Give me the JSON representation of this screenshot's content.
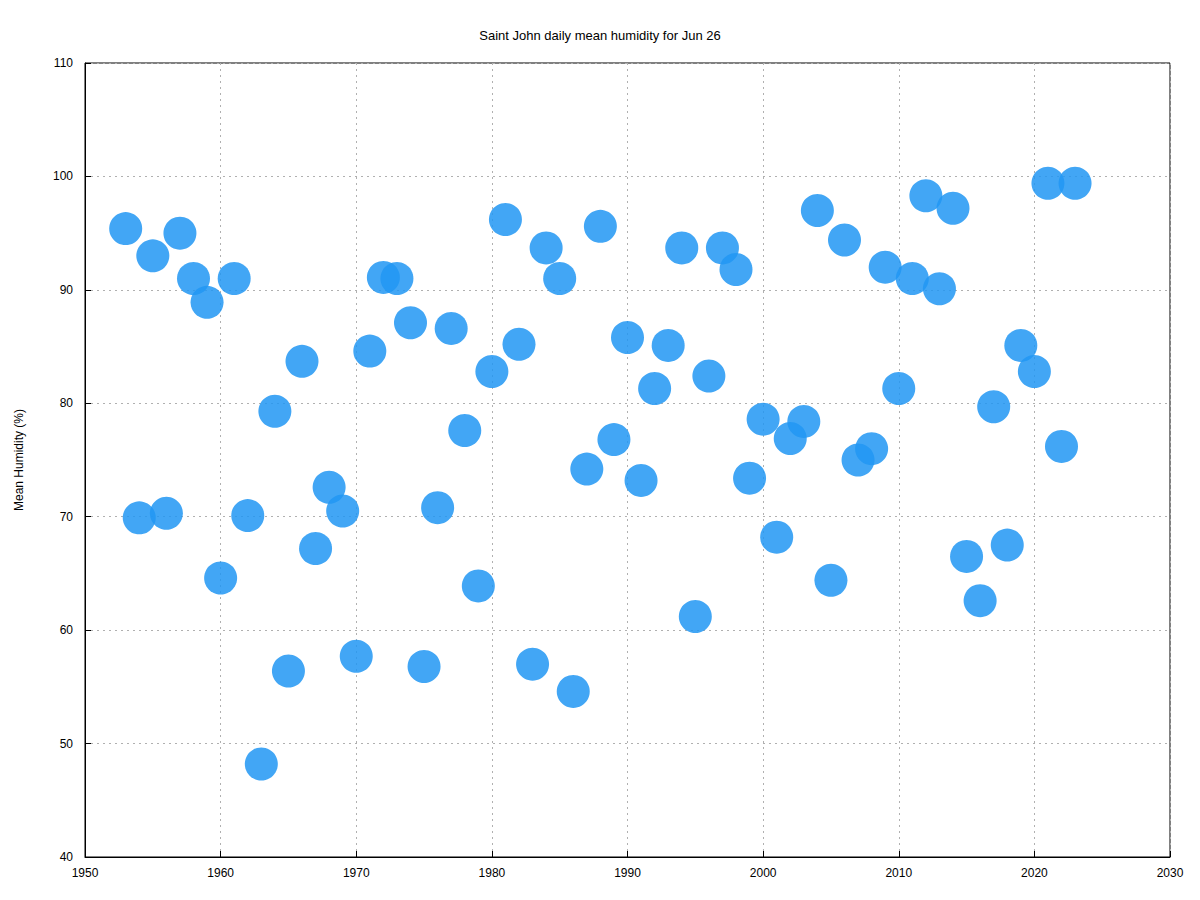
{
  "chart_data": {
    "type": "scatter",
    "title": "Saint John daily mean humidity for Jun 26",
    "y_label": "Mean Humidity (%)",
    "x": [
      1953,
      1954,
      1955,
      1956,
      1957,
      1958,
      1959,
      1960,
      1961,
      1962,
      1963,
      1964,
      1965,
      1966,
      1967,
      1968,
      1969,
      1970,
      1971,
      1972,
      1973,
      1974,
      1975,
      1976,
      1977,
      1978,
      1979,
      1980,
      1981,
      1982,
      1983,
      1984,
      1985,
      1986,
      1987,
      1988,
      1989,
      1990,
      1991,
      1992,
      1993,
      1994,
      1995,
      1996,
      1997,
      1998,
      1999,
      2000,
      2001,
      2002,
      2003,
      2004,
      2005,
      2006,
      2007,
      2008,
      2009,
      2010,
      2011,
      2012,
      2013,
      2014,
      2015,
      2016,
      2017,
      2018,
      2019,
      2020,
      2021,
      2022,
      2023
    ],
    "values": [
      95.4,
      69.9,
      93.0,
      70.3,
      95.0,
      91.0,
      88.9,
      64.6,
      91.0,
      70.1,
      48.2,
      79.3,
      56.4,
      83.7,
      67.2,
      72.6,
      70.5,
      57.7,
      84.6,
      91.1,
      91.0,
      87.1,
      56.8,
      70.8,
      86.6,
      77.6,
      63.9,
      82.8,
      96.2,
      85.2,
      57.0,
      93.7,
      91.0,
      54.6,
      74.2,
      95.6,
      76.8,
      85.8,
      73.2,
      81.3,
      85.1,
      93.7,
      61.2,
      82.4,
      93.7,
      91.8,
      73.4,
      78.6,
      68.2,
      76.9,
      78.4,
      97.0,
      64.4,
      94.4,
      75.0,
      76.0,
      92.0,
      81.3,
      91.0,
      98.3,
      90.1,
      97.2,
      66.5,
      62.6,
      79.7,
      67.5,
      85.1,
      82.8,
      99.4,
      76.2,
      99.4
    ],
    "color": "#2196f3",
    "marker": "circle",
    "xlim": [
      1950,
      2030
    ],
    "xticks": [
      1950,
      1960,
      1970,
      1980,
      1990,
      2000,
      2010,
      2020,
      2030
    ],
    "ylim": [
      40,
      110
    ],
    "yticks": [
      40,
      50,
      60,
      70,
      80,
      90,
      100,
      110
    ],
    "grid": true
  }
}
